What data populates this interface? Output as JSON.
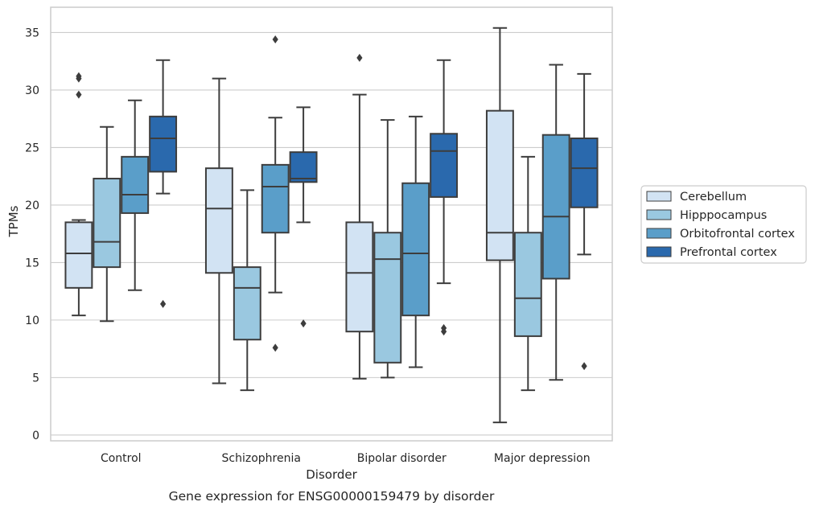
{
  "chart_data": {
    "type": "box",
    "title": "Gene expression for ENSG00000159479 by disorder",
    "xlabel": "Disorder",
    "ylabel": "TPMs",
    "ylim": [
      -0.5,
      37.2
    ],
    "yticks": [
      "0",
      "5",
      "10",
      "15",
      "20",
      "25",
      "30",
      "35"
    ],
    "grid": true,
    "legend_position": "right",
    "categories": [
      "Control",
      "Schizophrenia",
      "Bipolar disorder",
      "Major depression"
    ],
    "series": [
      {
        "name": "Cerebellum",
        "color": "#d2e3f3",
        "boxes": [
          {
            "whislo": 10.4,
            "q1": 12.8,
            "med": 15.8,
            "q3": 18.5,
            "whishi": 18.7,
            "fliers": [
              29.6,
              31.0,
              31.2
            ]
          },
          {
            "whislo": 4.5,
            "q1": 14.1,
            "med": 19.7,
            "q3": 23.2,
            "whishi": 31.0,
            "fliers": []
          },
          {
            "whislo": 4.9,
            "q1": 9.0,
            "med": 14.1,
            "q3": 18.5,
            "whishi": 29.6,
            "fliers": [
              32.8
            ]
          },
          {
            "whislo": 1.1,
            "q1": 15.2,
            "med": 17.6,
            "q3": 28.2,
            "whishi": 35.4,
            "fliers": []
          }
        ]
      },
      {
        "name": "Hipppocampus",
        "color": "#9ac8e0",
        "boxes": [
          {
            "whislo": 9.9,
            "q1": 14.6,
            "med": 16.8,
            "q3": 22.3,
            "whishi": 26.8,
            "fliers": []
          },
          {
            "whislo": 3.9,
            "q1": 8.3,
            "med": 12.8,
            "q3": 14.6,
            "whishi": 21.3,
            "fliers": []
          },
          {
            "whislo": 5.0,
            "q1": 6.3,
            "med": 15.3,
            "q3": 17.6,
            "whishi": 27.4,
            "fliers": []
          },
          {
            "whislo": 3.9,
            "q1": 8.6,
            "med": 11.9,
            "q3": 17.6,
            "whishi": 24.2,
            "fliers": []
          }
        ]
      },
      {
        "name": "Orbitofrontal cortex",
        "color": "#5a9ec9",
        "boxes": [
          {
            "whislo": 12.6,
            "q1": 19.3,
            "med": 20.9,
            "q3": 24.2,
            "whishi": 29.1,
            "fliers": []
          },
          {
            "whislo": 12.4,
            "q1": 17.6,
            "med": 21.6,
            "q3": 23.5,
            "whishi": 27.6,
            "fliers": [
              7.6,
              34.4
            ]
          },
          {
            "whislo": 5.9,
            "q1": 10.4,
            "med": 15.8,
            "q3": 21.9,
            "whishi": 27.7,
            "fliers": []
          },
          {
            "whislo": 4.8,
            "q1": 13.6,
            "med": 19.0,
            "q3": 26.1,
            "whishi": 32.2,
            "fliers": []
          }
        ]
      },
      {
        "name": "Prefrontal cortex",
        "color": "#2a69ad",
        "boxes": [
          {
            "whislo": 21.0,
            "q1": 22.9,
            "med": 25.8,
            "q3": 27.7,
            "whishi": 32.6,
            "fliers": [
              11.4
            ]
          },
          {
            "whislo": 18.5,
            "q1": 22.0,
            "med": 22.3,
            "q3": 24.6,
            "whishi": 28.5,
            "fliers": [
              9.7
            ]
          },
          {
            "whislo": 13.2,
            "q1": 20.7,
            "med": 24.7,
            "q3": 26.2,
            "whishi": 32.6,
            "fliers": [
              9.0,
              9.3
            ]
          },
          {
            "whislo": 15.7,
            "q1": 19.8,
            "med": 23.2,
            "q3": 25.8,
            "whishi": 31.4,
            "fliers": [
              6.0
            ]
          }
        ]
      }
    ]
  }
}
